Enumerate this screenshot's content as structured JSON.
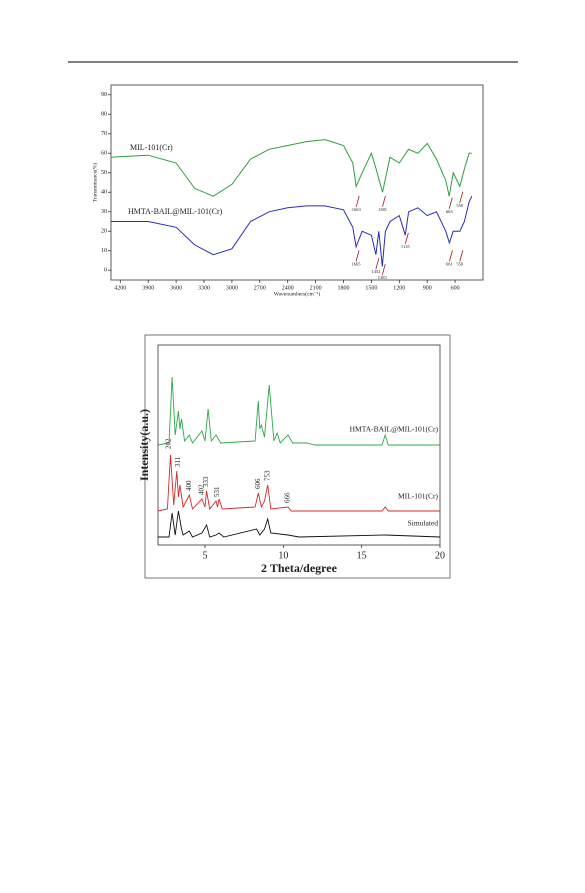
{
  "chart_data": [
    {
      "type": "line",
      "xlabel": "Wavenumbers(cm⁻¹)",
      "ylabel": "Transmittance(%)",
      "xlim": [
        4300,
        300
      ],
      "ylim": [
        -5,
        95
      ],
      "xticks": [
        4200,
        3900,
        3600,
        3300,
        3000,
        2700,
        2400,
        2100,
        1800,
        1500,
        1200,
        900,
        600
      ],
      "yticks": [
        0,
        10,
        20,
        30,
        40,
        50,
        60,
        70,
        80,
        90
      ],
      "series": [
        {
          "name": "MIL-101(Cr)",
          "color": "#2e9e3e",
          "x": [
            4300,
            3900,
            3600,
            3400,
            3200,
            3000,
            2800,
            2600,
            2400,
            2200,
            2000,
            1800,
            1700,
            1663,
            1600,
            1500,
            1450,
            1381,
            1300,
            1200,
            1100,
            1000,
            900,
            800,
            700,
            663,
            620,
            550,
            500,
            450,
            420
          ],
          "values": [
            58,
            59,
            55,
            42,
            38,
            44,
            57,
            62,
            64,
            66,
            67,
            64,
            55,
            43,
            50,
            60,
            52,
            40,
            58,
            55,
            62,
            60,
            65,
            57,
            46,
            38,
            50,
            43,
            52,
            60,
            60
          ]
        },
        {
          "name": "HMTA-BAIL@MIL-101(Cr)",
          "color": "#2b2bb8",
          "x": [
            4300,
            3900,
            3600,
            3400,
            3200,
            3000,
            2800,
            2600,
            2400,
            2200,
            2000,
            1800,
            1700,
            1665,
            1600,
            1500,
            1452,
            1420,
            1383,
            1350,
            1300,
            1200,
            1135,
            1100,
            1000,
            900,
            800,
            700,
            661,
            620,
            550,
            500,
            450,
            420
          ],
          "values": [
            25,
            25,
            22,
            13,
            8,
            11,
            25,
            30,
            32,
            33,
            33,
            31,
            22,
            12,
            20,
            18,
            8,
            20,
            2,
            20,
            25,
            28,
            18,
            30,
            32,
            28,
            30,
            20,
            14,
            20,
            20,
            25,
            35,
            38
          ]
        }
      ],
      "annotations": [
        {
          "label": "1663",
          "x": 1663,
          "y": 31
        },
        {
          "label": "1381",
          "x": 1381,
          "y": 31
        },
        {
          "label": "663",
          "x": 663,
          "y": 30
        },
        {
          "label": "550",
          "x": 550,
          "y": 33
        },
        {
          "label": "1665",
          "x": 1665,
          "y": 3
        },
        {
          "label": "1452",
          "x": 1452,
          "y": -1
        },
        {
          "label": "1383",
          "x": 1383,
          "y": -4
        },
        {
          "label": "1135",
          "x": 1135,
          "y": 12
        },
        {
          "label": "661",
          "x": 661,
          "y": 3
        },
        {
          "label": "550",
          "x": 550,
          "y": 3
        }
      ]
    },
    {
      "type": "line",
      "xlabel": "2 Theta/degree",
      "ylabel": "Intensity(a.u.)",
      "xlim": [
        2,
        20
      ],
      "ylim": [
        0,
        100
      ],
      "xticks": [
        5,
        10,
        15,
        20
      ],
      "series": [
        {
          "name": "HMTA-BAIL@MIL-101(Cr)",
          "color": "#2ea84a",
          "x": [
            2,
            2.7,
            2.9,
            3.1,
            3.3,
            3.4,
            3.5,
            3.7,
            4.0,
            4.2,
            4.8,
            5.0,
            5.2,
            5.4,
            5.7,
            6.0,
            8.2,
            8.4,
            8.5,
            8.6,
            8.8,
            9.1,
            9.4,
            9.6,
            9.8,
            10.3,
            10.6,
            11.5,
            12,
            16.3,
            16.5,
            16.7,
            20
          ],
          "values": [
            50,
            51,
            84,
            55,
            67,
            58,
            63,
            52,
            55,
            51,
            57,
            52,
            68,
            52,
            55,
            51,
            52,
            72,
            58,
            60,
            54,
            80,
            52,
            56,
            51,
            55,
            51,
            51,
            50,
            50,
            55,
            50,
            50
          ]
        },
        {
          "name": "MIL-101(Cr)",
          "color": "#d42a2a",
          "x": [
            2,
            2.6,
            2.8,
            3.0,
            3.2,
            3.3,
            3.4,
            3.6,
            4.0,
            4.2,
            4.8,
            5.0,
            5.1,
            5.3,
            5.7,
            5.8,
            5.9,
            6.1,
            8.2,
            8.4,
            8.6,
            8.8,
            9.0,
            9.2,
            10.3,
            10.5,
            16.3,
            16.5,
            16.7,
            20
          ],
          "values": [
            17,
            18,
            45,
            20,
            37,
            24,
            30,
            19,
            25,
            18,
            23,
            19,
            27,
            18,
            22,
            19,
            23,
            18,
            19,
            26,
            19,
            22,
            30,
            18,
            19,
            17,
            17,
            19,
            17,
            17
          ]
        },
        {
          "name": "Simulated",
          "color": "#111111",
          "x": [
            2,
            2.7,
            2.9,
            3.1,
            3.3,
            3.5,
            3.6,
            4.0,
            4.2,
            4.8,
            5.1,
            5.3,
            5.7,
            5.9,
            6.2,
            8.3,
            8.5,
            8.8,
            9.0,
            9.2,
            10.3,
            11,
            16.5,
            20
          ],
          "values": [
            4,
            4,
            16,
            5,
            17,
            8,
            5,
            7,
            4,
            6,
            10,
            4,
            5,
            6,
            4,
            8,
            5,
            8,
            13,
            6,
            5,
            4,
            5,
            4
          ]
        }
      ],
      "annotations": [
        {
          "label": "202",
          "x": 2.7,
          "y": 48
        },
        {
          "label": "311",
          "x": 3.3,
          "y": 39
        },
        {
          "label": "400",
          "x": 4.0,
          "y": 27
        },
        {
          "label": "402",
          "x": 4.8,
          "y": 25
        },
        {
          "label": "333",
          "x": 5.1,
          "y": 29
        },
        {
          "label": "531",
          "x": 5.8,
          "y": 24
        },
        {
          "label": "606",
          "x": 8.4,
          "y": 28
        },
        {
          "label": "753",
          "x": 9.0,
          "y": 32
        },
        {
          "label": "666",
          "x": 10.3,
          "y": 21
        }
      ]
    }
  ]
}
